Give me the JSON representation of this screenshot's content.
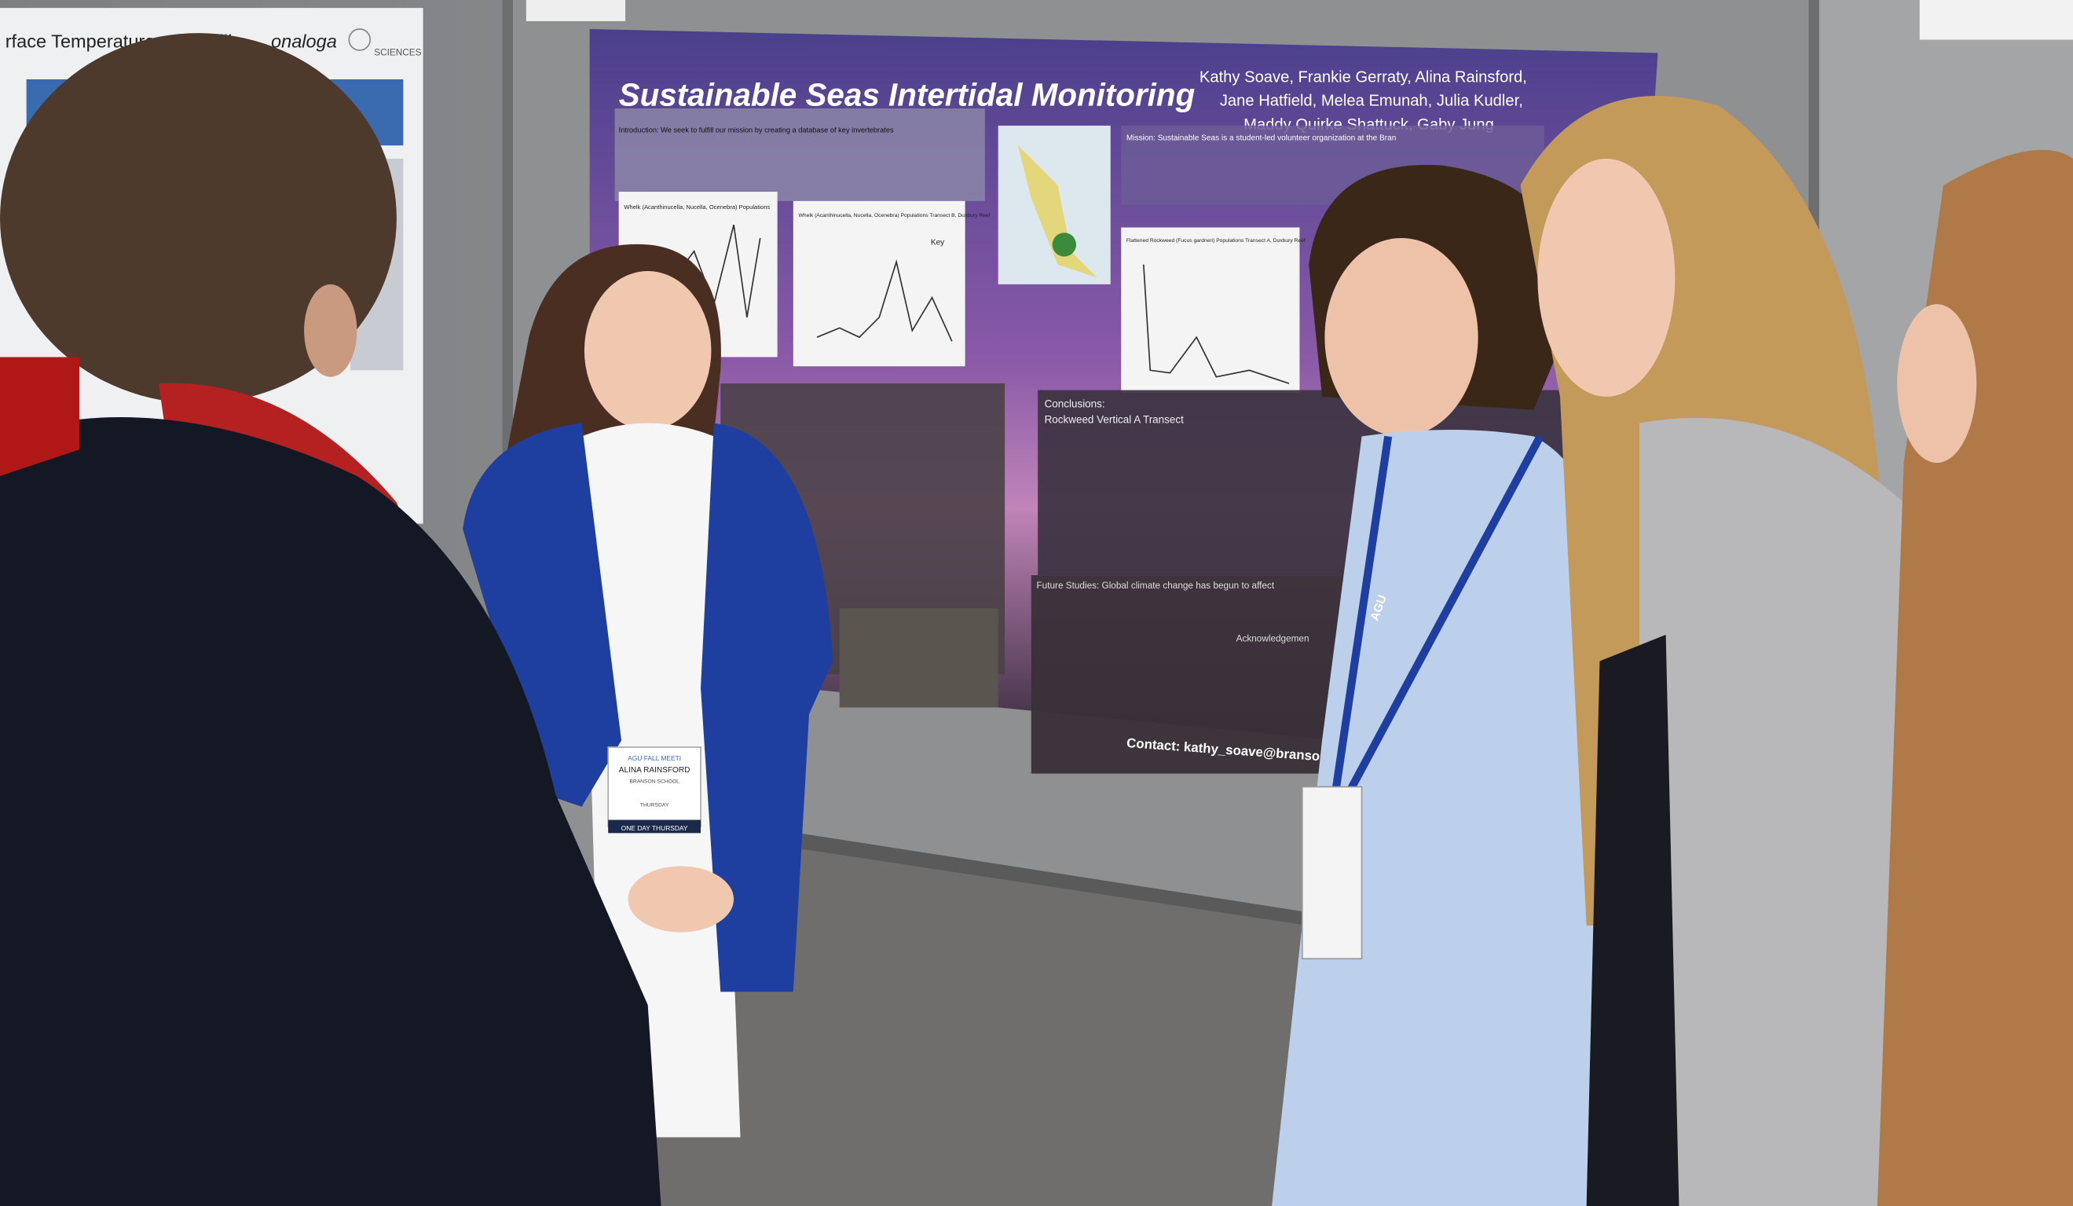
{
  "poster": {
    "title": "Sustainable Seas Intertidal Monitoring",
    "authors": [
      "Kathy Soave, Frankie Gerraty, Alina Rainsford,",
      "Jane Hatfield, Melea Emunah, Julia Kudler,",
      "Maddy Quirke Shattuck, Gaby Jung"
    ],
    "mission": "Mission: Sustainable Seas is a student-led volunteer organization at the Bran",
    "introduction": "Introduction: We seek to fulfill our mission by creating a database of key invertebrates",
    "chart_titles": [
      "Whelk (Acanthinucella, Nucella, Ocenebra) Populations",
      "Whelk (Acanthinucella, Nucella, Ocenebra) Populations Transect B, Duxbury Reef",
      "Flattened Rockweed (Fucus gardneri) Populations Transect A, Duxbury Reef"
    ],
    "key": "Key",
    "conclusions": "Conclusions:",
    "conclusion_subtitle": "Rockweed Vertical A Transect",
    "future": "Future Studies: Global climate change has begun to affect",
    "acknowledgements": "Acknowledgemen",
    "contact": "Contact: kathy_soave@branso"
  },
  "badge": {
    "event": "AGU FALL MEETI",
    "name": "ALINA RAINSFORD",
    "school": "BRANSON SCHOOL",
    "day": "THURSDAY",
    "banner": "ONE DAY THURSDAY"
  },
  "lanyard": "AGU",
  "left_poster": {
    "title": "rface Temperature on Profilic",
    "species": "onaloga",
    "logo": "SCIENCES"
  }
}
